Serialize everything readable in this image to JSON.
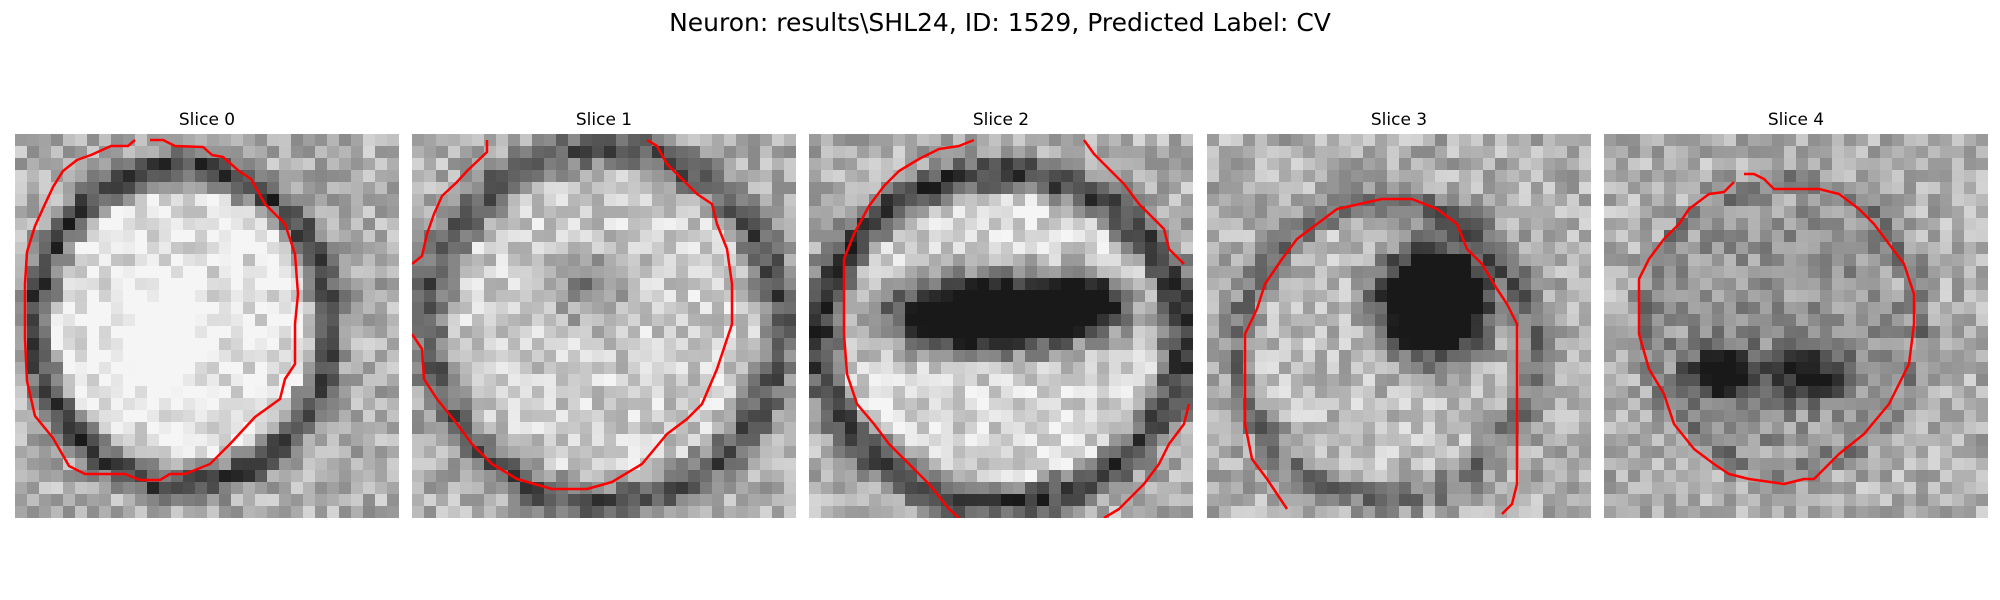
{
  "title": "Neuron: results\\SHL24, ID: 1529, Predicted Label: CV",
  "contour_color": "#ff0000",
  "slices": [
    {
      "label": "Slice 0"
    },
    {
      "label": "Slice 1"
    },
    {
      "label": "Slice 2"
    },
    {
      "label": "Slice 3"
    },
    {
      "label": "Slice 4"
    }
  ]
}
